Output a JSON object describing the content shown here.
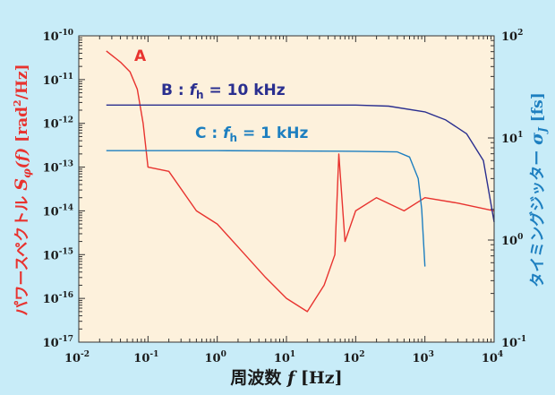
{
  "chart_data": {
    "type": "line",
    "xlabel": "周波数 f [Hz]",
    "ylabel_left": "パワースペクトル Sφ(f) [rad²/Hz]",
    "ylabel_right": "タイミングジッター σJ [fs]",
    "x_scale": "log",
    "y_left_scale": "log",
    "y_right_scale": "log",
    "xlim": [
      0.01,
      10000
    ],
    "ylim_left": [
      1e-17,
      1e-10
    ],
    "ylim_right": [
      0.1,
      100
    ],
    "x_ticks": [
      {
        "base": "10",
        "exp": "-2"
      },
      {
        "base": "10",
        "exp": "-1"
      },
      {
        "base": "10",
        "exp": "0"
      },
      {
        "base": "10",
        "exp": "1"
      },
      {
        "base": "10",
        "exp": "2"
      },
      {
        "base": "10",
        "exp": "3"
      },
      {
        "base": "10",
        "exp": "4"
      }
    ],
    "y_left_ticks": [
      {
        "base": "10",
        "exp": "-17"
      },
      {
        "base": "10",
        "exp": "-16"
      },
      {
        "base": "10",
        "exp": "-15"
      },
      {
        "base": "10",
        "exp": "-14"
      },
      {
        "base": "10",
        "exp": "-13"
      },
      {
        "base": "10",
        "exp": "-12"
      },
      {
        "base": "10",
        "exp": "-11"
      },
      {
        "base": "10",
        "exp": "-10"
      }
    ],
    "y_right_ticks": [
      {
        "base": "10",
        "exp": "-1"
      },
      {
        "base": "10",
        "exp": "0"
      },
      {
        "base": "10",
        "exp": "1"
      },
      {
        "base": "10",
        "exp": "2"
      }
    ],
    "series": [
      {
        "name": "A",
        "axis": "left",
        "color": "#e8332f",
        "x": [
          0.025,
          0.04,
          0.055,
          0.07,
          0.085,
          0.1,
          0.2,
          0.5,
          1,
          2,
          5,
          10,
          20,
          35,
          50,
          57,
          70,
          100,
          200,
          500,
          1000,
          3000,
          10000
        ],
        "y": [
          4.5e-11,
          2.5e-11,
          1.5e-11,
          6e-12,
          1e-12,
          1e-13,
          8e-14,
          1e-14,
          5e-15,
          1.5e-15,
          3e-16,
          1e-16,
          5e-17,
          2e-16,
          1e-15,
          2e-13,
          2e-15,
          1e-14,
          2e-14,
          1e-14,
          2e-14,
          1.5e-14,
          1e-14
        ]
      },
      {
        "name": "B : fh = 10 kHz",
        "axis": "right",
        "color": "#2a2f8f",
        "x": [
          0.025,
          1,
          100,
          300,
          1000,
          2000,
          4000,
          7000,
          10000
        ],
        "y": [
          21,
          21,
          21,
          20.5,
          18,
          15,
          11,
          6,
          1.5
        ]
      },
      {
        "name": "C : fh = 1 kHz",
        "axis": "right",
        "color": "#1d7fc0",
        "x": [
          0.025,
          1,
          100,
          400,
          600,
          800,
          900,
          1000
        ],
        "y": [
          7.5,
          7.5,
          7.4,
          7.3,
          6.5,
          4,
          2,
          0.55
        ]
      }
    ]
  },
  "labels": {
    "A": "A",
    "B_prefix": "B : ",
    "B_sub": "h",
    "B_suffix": " = 10 kHz",
    "C_prefix": "C : ",
    "C_sub": "h",
    "C_suffix": " = 1 kHz",
    "f": "f",
    "xlabel_main": "周波数 ",
    "xlabel_f": "f",
    "xlabel_unit": " [Hz]",
    "ylabel_left_jp": "パワースペクトル ",
    "ylabel_left_S": "S",
    "ylabel_left_phi": "φ",
    "ylabel_left_f": "(f)",
    "ylabel_left_unit": " [rad",
    "ylabel_left_sq": "2",
    "ylabel_left_unit2": "/Hz]",
    "ylabel_right_jp": "タイミングジッター ",
    "ylabel_right_sigma": "σ",
    "ylabel_right_J": "J",
    "ylabel_right_unit": " [fs]"
  }
}
